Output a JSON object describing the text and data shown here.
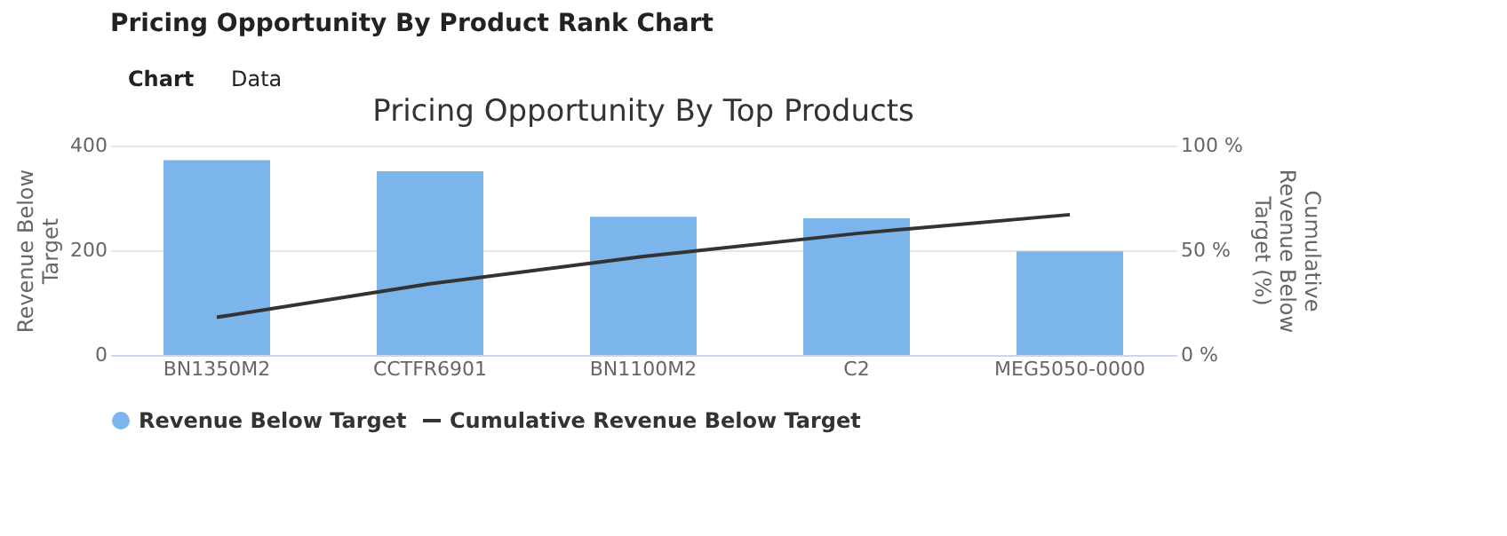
{
  "chart_data": {
    "type": "bar",
    "title": "Pricing Opportunity By Product Rank Chart",
    "subtitle": "Pricing Opportunity By Top Products",
    "annotations": [
      "Chart",
      "Data"
    ],
    "categories": [
      "BN1350M2",
      "CCTFR6901",
      "BN1100M2",
      "C2",
      "MEG5050-0000"
    ],
    "series": [
      {
        "name": "Revenue Below Target",
        "color": "#7cb5ec",
        "values": [
          372,
          351,
          264,
          261,
          198
        ]
      },
      {
        "name": "Cumulative Revenue Below Target",
        "type": "line",
        "axis": "y2",
        "color": "#333333",
        "values": [
          18,
          34,
          47,
          58,
          67
        ]
      }
    ],
    "ylabel": "Revenue Below Target",
    "y2label": "Cumulative Revenue Below Target (%)",
    "ylim": [
      0,
      400
    ],
    "yticks": [
      0,
      200,
      400
    ],
    "y2lim": [
      0,
      100
    ],
    "y2ticks": [
      {
        "value": 0,
        "label": "0 %"
      },
      {
        "value": 50,
        "label": "50 %"
      },
      {
        "value": 100,
        "label": "100 %"
      }
    ],
    "grid": "y",
    "legend": "bottom",
    "marker": "none"
  }
}
